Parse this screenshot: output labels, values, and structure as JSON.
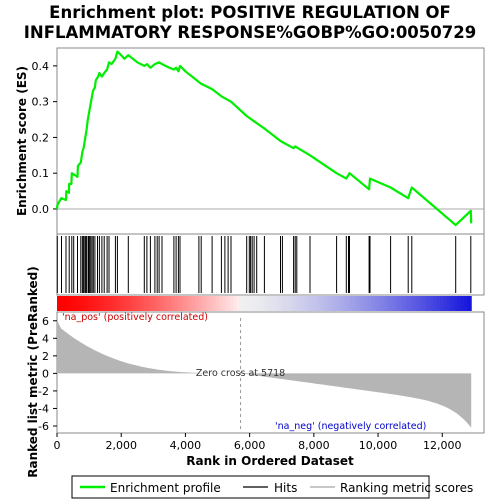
{
  "chart_data": {
    "type": "line",
    "title": [
      "Enrichment plot: POSITIVE REGULATION OF",
      "INFLAMMATORY RESPONSE%GOBP%GO:0050729"
    ],
    "ylabel_top": "Enrichment score (ES)",
    "ylabel_bottom": "Ranked list metric (PreRanked)",
    "xlabel": "Rank in Ordered Dataset",
    "x_range": [
      0,
      13300
    ],
    "es_ylim": [
      -0.07,
      0.45
    ],
    "metric_ylim": [
      -6.8,
      7.0
    ],
    "x_ticks": [
      0,
      2000,
      4000,
      6000,
      8000,
      10000,
      12000
    ],
    "x_tick_labels": [
      "0",
      "2,000",
      "4,000",
      "6,000",
      "8,000",
      "10,000",
      "12,000"
    ],
    "es_ticks": [
      0.0,
      0.1,
      0.2,
      0.3,
      0.4
    ],
    "es_tick_labels": [
      "0.0",
      "0.1",
      "0.2",
      "0.3",
      "0.4"
    ],
    "metric_ticks": [
      6,
      4,
      2,
      0,
      -2,
      -4,
      -6
    ],
    "metric_tick_labels": [
      "6",
      "4",
      "2",
      "0",
      "-2",
      "-4",
      "-6"
    ],
    "zero_cross_rank": 5718,
    "zero_cross_label": "Zero cross at 5718",
    "pos_label": "'na_pos' (positively correlated)",
    "neg_label": "'na_neg' (negatively correlated)",
    "hits": [
      10,
      140,
      280,
      380,
      460,
      520,
      640,
      740,
      790,
      830,
      870,
      900,
      930,
      980,
      1010,
      1050,
      1090,
      1130,
      1180,
      1260,
      1320,
      1400,
      1470,
      1560,
      1620,
      1820,
      1880,
      2220,
      2720,
      2800,
      2910,
      3050,
      3120,
      3180,
      3270,
      3640,
      3710,
      3780,
      3830,
      4420,
      4490,
      4830,
      5120,
      5230,
      5330,
      5420,
      5910,
      5990,
      6030,
      6080,
      6140,
      6220,
      6460,
      6960,
      7020,
      7370,
      7420,
      7470,
      7880,
      8710,
      9010,
      9080,
      9110,
      9720,
      9750,
      10390,
      10940,
      11050,
      12420,
      12890
    ],
    "es_series": [
      [
        0,
        0.0
      ],
      [
        10,
        0.01
      ],
      [
        130,
        0.03
      ],
      [
        280,
        0.025
      ],
      [
        290,
        0.05
      ],
      [
        370,
        0.045
      ],
      [
        380,
        0.07
      ],
      [
        450,
        0.07
      ],
      [
        460,
        0.1
      ],
      [
        640,
        0.09
      ],
      [
        650,
        0.12
      ],
      [
        740,
        0.13
      ],
      [
        790,
        0.16
      ],
      [
        830,
        0.17
      ],
      [
        880,
        0.2
      ],
      [
        920,
        0.22
      ],
      [
        960,
        0.25
      ],
      [
        1000,
        0.27
      ],
      [
        1040,
        0.29
      ],
      [
        1080,
        0.31
      ],
      [
        1120,
        0.33
      ],
      [
        1180,
        0.34
      ],
      [
        1210,
        0.36
      ],
      [
        1280,
        0.37
      ],
      [
        1320,
        0.38
      ],
      [
        1400,
        0.37
      ],
      [
        1470,
        0.38
      ],
      [
        1560,
        0.39
      ],
      [
        1620,
        0.41
      ],
      [
        1700,
        0.405
      ],
      [
        1820,
        0.42
      ],
      [
        1880,
        0.44
      ],
      [
        2000,
        0.43
      ],
      [
        2100,
        0.42
      ],
      [
        2220,
        0.43
      ],
      [
        2500,
        0.41
      ],
      [
        2720,
        0.4
      ],
      [
        2800,
        0.405
      ],
      [
        2910,
        0.395
      ],
      [
        3050,
        0.405
      ],
      [
        3180,
        0.41
      ],
      [
        3270,
        0.405
      ],
      [
        3500,
        0.395
      ],
      [
        3640,
        0.39
      ],
      [
        3710,
        0.395
      ],
      [
        3780,
        0.385
      ],
      [
        3830,
        0.4
      ],
      [
        4000,
        0.385
      ],
      [
        4420,
        0.355
      ],
      [
        4490,
        0.35
      ],
      [
        4830,
        0.335
      ],
      [
        5120,
        0.315
      ],
      [
        5420,
        0.3
      ],
      [
        5910,
        0.26
      ],
      [
        6140,
        0.245
      ],
      [
        6460,
        0.225
      ],
      [
        6960,
        0.19
      ],
      [
        7370,
        0.17
      ],
      [
        7420,
        0.175
      ],
      [
        7880,
        0.15
      ],
      [
        8710,
        0.1
      ],
      [
        9010,
        0.085
      ],
      [
        9110,
        0.1
      ],
      [
        9720,
        0.055
      ],
      [
        9750,
        0.085
      ],
      [
        10390,
        0.06
      ],
      [
        10940,
        0.03
      ],
      [
        11050,
        0.06
      ],
      [
        12420,
        -0.045
      ],
      [
        12890,
        -0.005
      ],
      [
        12900,
        -0.04
      ]
    ]
  },
  "legend": {
    "profile_label": "Enrichment profile",
    "hits_label": "Hits",
    "ranking_label": "Ranking metric scores"
  },
  "colors": {
    "profile": "#00ee00",
    "hits": "#000000",
    "ranking_fill": "#b5b5b5",
    "pos_text": "#cc0000",
    "neg_text": "#0000cc"
  }
}
